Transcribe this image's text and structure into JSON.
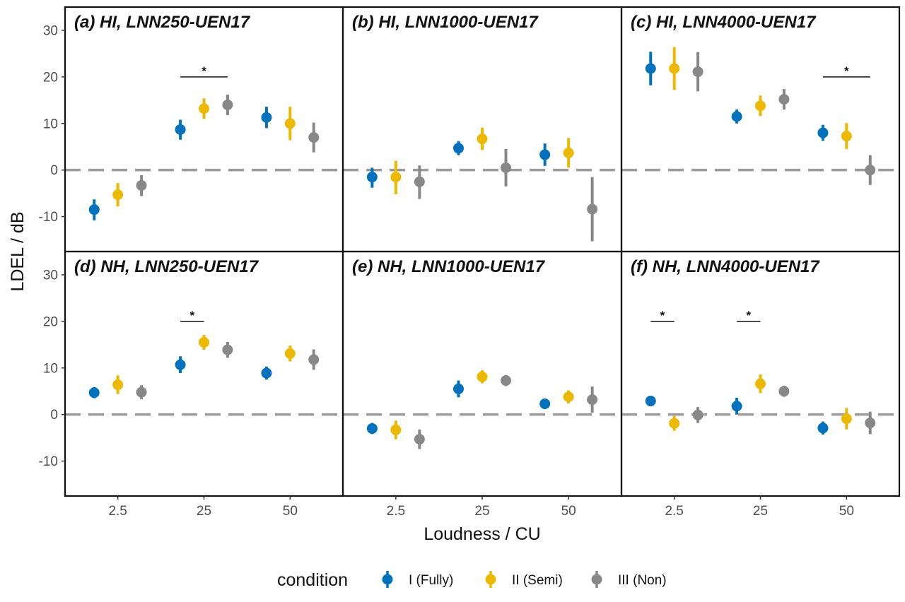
{
  "chart_data": {
    "type": "scatter",
    "subtype": "point-errorbar facet grid",
    "xlabel": "Loudness / CU",
    "ylabel": "LDEL / dB",
    "categories": [
      "2.5",
      "25",
      "50"
    ],
    "ylim": [
      -17.5,
      35
    ],
    "yticks": [
      -10,
      0,
      10,
      20,
      30
    ],
    "reference_line": 0,
    "legend": {
      "title": "condition",
      "position": "bottom",
      "items": [
        {
          "label": "I (Fully)",
          "color": "#0072BD"
        },
        {
          "label": "II (Semi)",
          "color": "#EDB800"
        },
        {
          "label": "III (Non)",
          "color": "#888888"
        }
      ]
    },
    "panels": [
      {
        "title": "(a) HI, LNN250-UEN17",
        "series": [
          {
            "name": "I (Fully)",
            "mean": [
              -8.5,
              8.7,
              11.3
            ],
            "lower": [
              -10.8,
              6.5,
              9.0
            ],
            "upper": [
              -6.3,
              10.8,
              13.6
            ]
          },
          {
            "name": "II (Semi)",
            "mean": [
              -5.3,
              13.2,
              10.0
            ],
            "lower": [
              -7.8,
              11.0,
              6.4
            ],
            "upper": [
              -2.8,
              15.4,
              13.6
            ]
          },
          {
            "name": "III (Non)",
            "mean": [
              -3.3,
              14.0,
              7.0
            ],
            "lower": [
              -5.6,
              11.8,
              3.8
            ],
            "upper": [
              -1.1,
              16.2,
              10.2
            ]
          }
        ],
        "significance": [
          {
            "category": "25",
            "from": "I (Fully)",
            "to": "III (Non)",
            "y": 20,
            "label": "*"
          }
        ]
      },
      {
        "title": "(b) HI, LNN1000-UEN17",
        "series": [
          {
            "name": "I (Fully)",
            "mean": [
              -1.5,
              4.7,
              3.3
            ],
            "lower": [
              -3.8,
              3.2,
              0.9
            ],
            "upper": [
              0.5,
              6.2,
              5.7
            ]
          },
          {
            "name": "II (Semi)",
            "mean": [
              -1.5,
              6.7,
              3.7
            ],
            "lower": [
              -5.2,
              4.3,
              0.5
            ],
            "upper": [
              2.0,
              9.1,
              6.9
            ]
          },
          {
            "name": "III (Non)",
            "mean": [
              -2.5,
              0.5,
              -8.4
            ],
            "lower": [
              -6.2,
              -3.5,
              -15.3
            ],
            "upper": [
              1.0,
              4.5,
              -1.5
            ]
          }
        ]
      },
      {
        "title": "(c) HI, LNN4000-UEN17",
        "series": [
          {
            "name": "I (Fully)",
            "mean": [
              21.8,
              11.5,
              8.0
            ],
            "lower": [
              18.2,
              10.0,
              6.3
            ],
            "upper": [
              25.4,
              13.0,
              9.7
            ]
          },
          {
            "name": "II (Semi)",
            "mean": [
              21.8,
              13.8,
              7.3
            ],
            "lower": [
              17.2,
              11.6,
              4.5
            ],
            "upper": [
              26.4,
              16.0,
              10.1
            ]
          },
          {
            "name": "III (Non)",
            "mean": [
              21.1,
              15.2,
              0.0
            ],
            "lower": [
              16.9,
              13.0,
              -3.2
            ],
            "upper": [
              25.3,
              17.4,
              3.2
            ]
          }
        ],
        "significance": [
          {
            "category": "50",
            "from": "I (Fully)",
            "to": "III (Non)",
            "y": 20,
            "label": "*"
          }
        ]
      },
      {
        "title": "(d) NH, LNN250-UEN17",
        "series": [
          {
            "name": "I (Fully)",
            "mean": [
              4.7,
              10.7,
              8.9
            ],
            "lower": [
              3.5,
              8.9,
              7.5
            ],
            "upper": [
              5.9,
              12.5,
              10.3
            ]
          },
          {
            "name": "II (Semi)",
            "mean": [
              6.4,
              15.5,
              13.1
            ],
            "lower": [
              4.4,
              13.9,
              11.4
            ],
            "upper": [
              8.4,
              17.1,
              14.8
            ]
          },
          {
            "name": "III (Non)",
            "mean": [
              4.8,
              13.9,
              11.8
            ],
            "lower": [
              3.3,
              12.2,
              9.6
            ],
            "upper": [
              6.3,
              15.6,
              14.0
            ]
          }
        ],
        "significance": [
          {
            "category": "25",
            "from": "I (Fully)",
            "to": "II (Semi)",
            "y": 20,
            "label": "*"
          }
        ]
      },
      {
        "title": "(e) NH, LNN1000-UEN17",
        "series": [
          {
            "name": "I (Fully)",
            "mean": [
              -3.0,
              5.5,
              2.3
            ],
            "lower": [
              -4.2,
              3.7,
              1.2
            ],
            "upper": [
              -1.8,
              7.3,
              3.4
            ]
          },
          {
            "name": "II (Semi)",
            "mean": [
              -3.3,
              8.1,
              3.8
            ],
            "lower": [
              -5.3,
              6.7,
              2.4
            ],
            "upper": [
              -1.3,
              9.5,
              5.2
            ]
          },
          {
            "name": "III (Non)",
            "mean": [
              -5.3,
              7.3,
              3.2
            ],
            "lower": [
              -7.4,
              6.1,
              0.4
            ],
            "upper": [
              -3.2,
              8.5,
              6.0
            ]
          }
        ]
      },
      {
        "title": "(f) NH, LNN4000-UEN17",
        "series": [
          {
            "name": "I (Fully)",
            "mean": [
              2.9,
              1.8,
              -2.9
            ],
            "lower": [
              1.9,
              0.0,
              -4.3
            ],
            "upper": [
              3.9,
              3.6,
              -1.5
            ]
          },
          {
            "name": "II (Semi)",
            "mean": [
              -1.9,
              6.6,
              -0.9
            ],
            "lower": [
              -3.5,
              4.6,
              -3.2
            ],
            "upper": [
              -0.3,
              8.6,
              1.4
            ]
          },
          {
            "name": "III (Non)",
            "mean": [
              -0.1,
              5.0,
              -1.8
            ],
            "lower": [
              -1.8,
              3.8,
              -4.2
            ],
            "upper": [
              1.6,
              6.2,
              0.6
            ]
          }
        ],
        "significance": [
          {
            "category": "2.5",
            "from": "I (Fully)",
            "to": "II (Semi)",
            "y": 20,
            "label": "*"
          },
          {
            "category": "25",
            "from": "I (Fully)",
            "to": "II (Semi)",
            "y": 20,
            "label": "*"
          }
        ]
      }
    ]
  }
}
